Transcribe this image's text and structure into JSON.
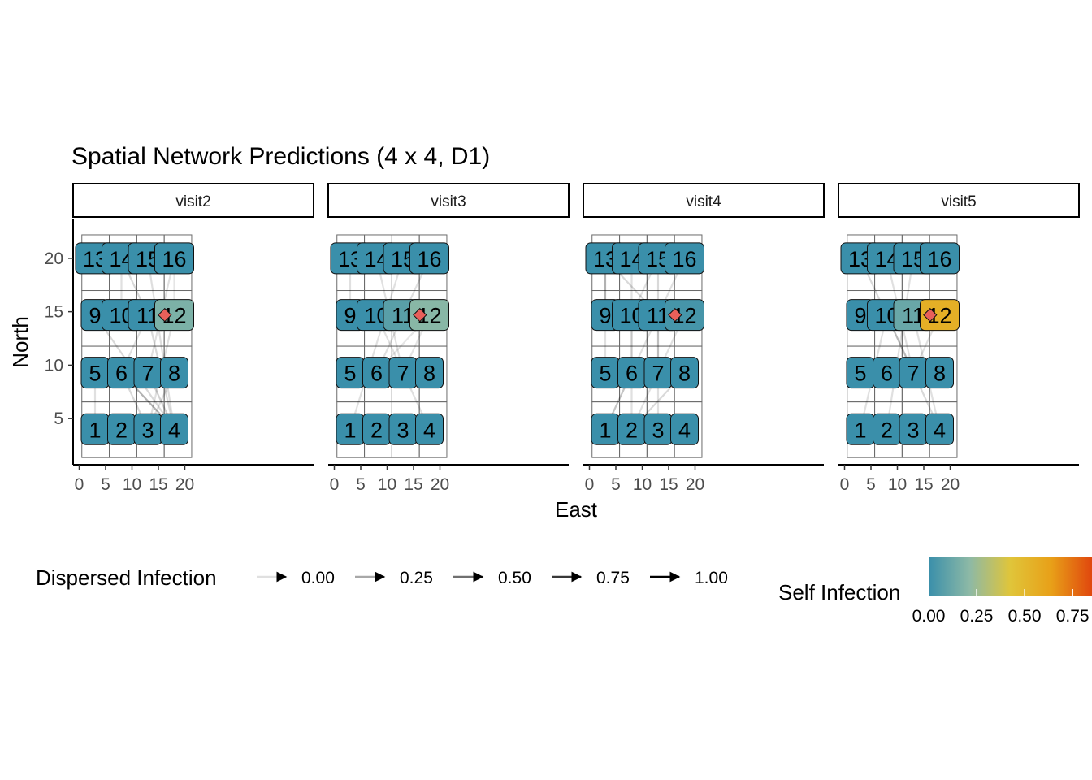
{
  "chart_data": {
    "type": "network",
    "title": "Spatial Network Predictions (4 x 4, D1)",
    "xlabel": "East",
    "ylabel": "North",
    "xlim": [
      0,
      20
    ],
    "ylim": [
      0,
      22
    ],
    "x_ticks": [
      "0",
      "5",
      "10",
      "15",
      "20"
    ],
    "y_ticks": [
      "5",
      "10",
      "15",
      "20"
    ],
    "x_tick_values": [
      0,
      5,
      10,
      15,
      20
    ],
    "y_tick_values": [
      5,
      10,
      15,
      20
    ],
    "grid": false,
    "nodes": [
      {
        "id": "1",
        "x": 3,
        "y": 4
      },
      {
        "id": "2",
        "x": 8,
        "y": 4
      },
      {
        "id": "3",
        "x": 13,
        "y": 4
      },
      {
        "id": "4",
        "x": 18,
        "y": 4
      },
      {
        "id": "5",
        "x": 3,
        "y": 9.3
      },
      {
        "id": "6",
        "x": 8,
        "y": 9.3
      },
      {
        "id": "7",
        "x": 13,
        "y": 9.3
      },
      {
        "id": "8",
        "x": 18,
        "y": 9.3
      },
      {
        "id": "9",
        "x": 3,
        "y": 14.7
      },
      {
        "id": "10",
        "x": 8,
        "y": 14.7
      },
      {
        "id": "11",
        "x": 13,
        "y": 14.7
      },
      {
        "id": "12",
        "x": 18,
        "y": 14.7
      },
      {
        "id": "13",
        "x": 3,
        "y": 20
      },
      {
        "id": "14",
        "x": 8,
        "y": 20
      },
      {
        "id": "15",
        "x": 13,
        "y": 20
      },
      {
        "id": "16",
        "x": 18,
        "y": 20
      }
    ],
    "source_marker": {
      "x": 16.2,
      "y": 14.7,
      "shape": "diamond",
      "color": "#E8605A"
    },
    "colors": {
      "node_default": "#4E9AB2",
      "edge": "#000000",
      "panel_border": "#000000",
      "cell_line": "#6b6b6b"
    },
    "panels": [
      {
        "name": "visit2",
        "self_infection": {
          "12": 0.17
        },
        "edges": [
          {
            "from": "14",
            "to": "11",
            "weight": 0.15
          },
          {
            "from": "14",
            "to": "10",
            "weight": 0.12
          },
          {
            "from": "15",
            "to": "4",
            "weight": 0.13
          },
          {
            "from": "16",
            "to": "7",
            "weight": 0.12
          },
          {
            "from": "9",
            "to": "4",
            "weight": 0.15
          },
          {
            "from": "11",
            "to": "4",
            "weight": 0.15
          },
          {
            "from": "11",
            "to": "6",
            "weight": 0.12
          },
          {
            "from": "10",
            "to": "12",
            "weight": 0.28
          },
          {
            "from": "6",
            "to": "4",
            "weight": 0.3
          },
          {
            "from": "7",
            "to": "4",
            "weight": 0.18
          },
          {
            "from": "8",
            "to": "6",
            "weight": 0.22
          },
          {
            "from": "3",
            "to": "6",
            "weight": 0.15
          },
          {
            "from": "8",
            "to": "3",
            "weight": 0.12
          },
          {
            "from": "5",
            "to": "6",
            "weight": 0.12
          },
          {
            "from": "1",
            "to": "5",
            "weight": 0.12
          },
          {
            "from": "3",
            "to": "4",
            "weight": 0.18
          },
          {
            "from": "12",
            "to": "3",
            "weight": 0.12
          },
          {
            "from": "16",
            "to": "12",
            "weight": 0.1
          }
        ]
      },
      {
        "name": "visit3",
        "self_infection": {
          "11": 0.08,
          "12": 0.2
        },
        "edges": [
          {
            "from": "13",
            "to": "14",
            "weight": 0.25
          },
          {
            "from": "13",
            "to": "9",
            "weight": 0.12
          },
          {
            "from": "16",
            "to": "6",
            "weight": 0.12
          },
          {
            "from": "15",
            "to": "1",
            "weight": 0.12
          },
          {
            "from": "10",
            "to": "4",
            "weight": 0.12
          },
          {
            "from": "14",
            "to": "7",
            "weight": 0.12
          },
          {
            "from": "8",
            "to": "7",
            "weight": 0.25
          },
          {
            "from": "2",
            "to": "4",
            "weight": 0.12
          },
          {
            "from": "7",
            "to": "12",
            "weight": 0.1
          },
          {
            "from": "6",
            "to": "12",
            "weight": 0.1
          }
        ]
      },
      {
        "name": "visit4",
        "self_infection": {
          "12": 0.03
        },
        "edges": [
          {
            "from": "13",
            "to": "9",
            "weight": 0.3
          },
          {
            "from": "13",
            "to": "11",
            "weight": 0.15
          },
          {
            "from": "10",
            "to": "12",
            "weight": 0.35
          },
          {
            "from": "9",
            "to": "5",
            "weight": 0.12
          },
          {
            "from": "16",
            "to": "1",
            "weight": 0.12
          },
          {
            "from": "15",
            "to": "7",
            "weight": 0.15
          },
          {
            "from": "14",
            "to": "2",
            "weight": 0.12
          },
          {
            "from": "12",
            "to": "2",
            "weight": 0.12
          },
          {
            "from": "10",
            "to": "6",
            "weight": 0.12
          },
          {
            "from": "8",
            "to": "2",
            "weight": 0.15
          },
          {
            "from": "2",
            "to": "3",
            "weight": 0.12
          },
          {
            "from": "6",
            "to": "1",
            "weight": 0.12
          },
          {
            "from": "11",
            "to": "3",
            "weight": 0.12
          },
          {
            "from": "15",
            "to": "10",
            "weight": 0.12
          }
        ]
      },
      {
        "name": "visit5",
        "self_infection": {
          "11": 0.12,
          "12": 0.55
        },
        "edges": [
          {
            "from": "13",
            "to": "7",
            "weight": 0.15
          },
          {
            "from": "9",
            "to": "12",
            "weight": 0.15
          },
          {
            "from": "14",
            "to": "7",
            "weight": 0.12
          },
          {
            "from": "10",
            "to": "4",
            "weight": 0.15
          },
          {
            "from": "10",
            "to": "1",
            "weight": 0.12
          },
          {
            "from": "6",
            "to": "8",
            "weight": 0.12
          },
          {
            "from": "15",
            "to": "2",
            "weight": 0.12
          },
          {
            "from": "3",
            "to": "1",
            "weight": 0.28
          },
          {
            "from": "11",
            "to": "4",
            "weight": 0.12
          },
          {
            "from": "12",
            "to": "7",
            "weight": 0.12
          },
          {
            "from": "6",
            "to": "5",
            "weight": 0.1
          },
          {
            "from": "2",
            "to": "1",
            "weight": 0.12
          }
        ]
      }
    ],
    "legend_dispersed": {
      "title": "Dispersed Infection",
      "values": [
        0.0,
        0.25,
        0.5,
        0.75,
        1.0
      ],
      "labels": [
        "0.00",
        "0.25",
        "0.50",
        "0.75",
        "1.00"
      ],
      "placement": "bottom-left"
    },
    "legend_self": {
      "title": "Self Infection",
      "labels": [
        "0.00",
        "0.25",
        "0.50",
        "0.75"
      ],
      "values": [
        0,
        0.25,
        0.5,
        0.75
      ],
      "max": 0.85,
      "colors": [
        "#3A8FAA",
        "#8DB9A6",
        "#E0C53A",
        "#E8A018",
        "#E0470E"
      ],
      "placement": "bottom-right"
    }
  }
}
